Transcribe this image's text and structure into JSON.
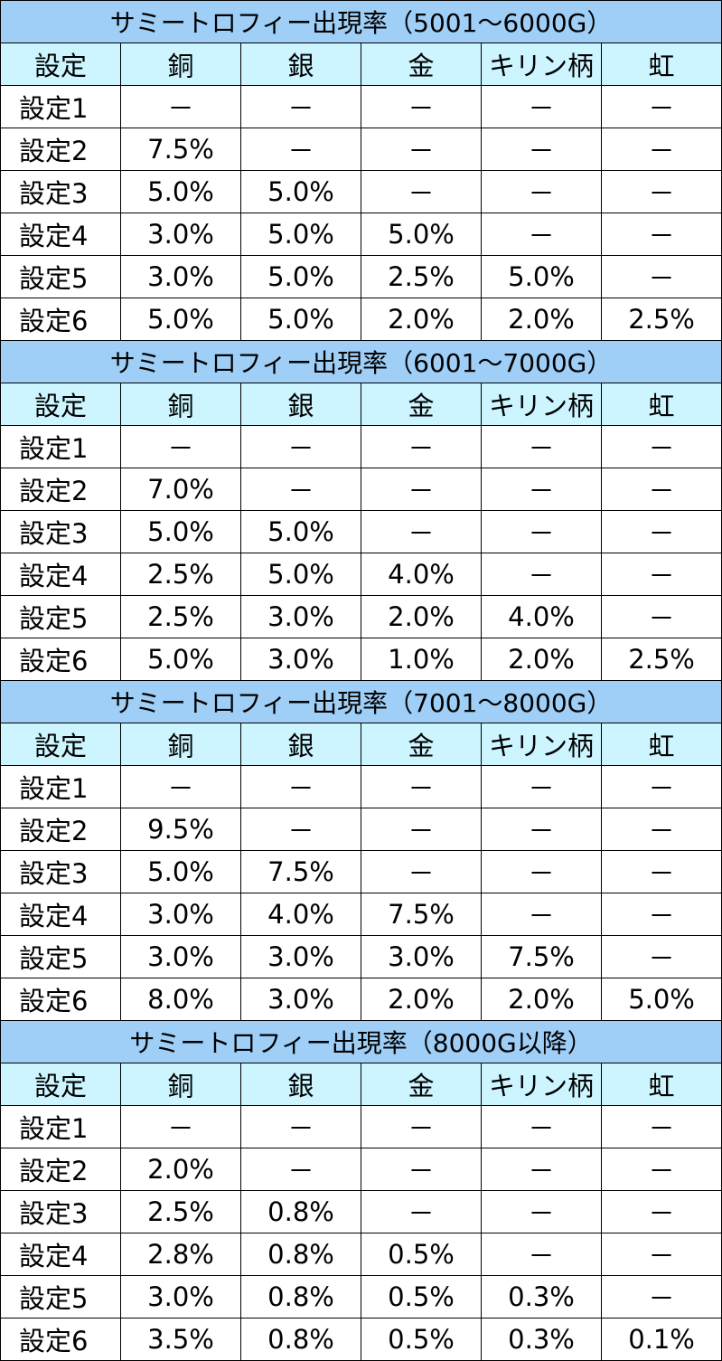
{
  "columns": [
    "設定",
    "銅",
    "銀",
    "金",
    "キリン柄",
    "虹"
  ],
  "sections": [
    {
      "title": "サミートロフィー出現率（5001～6000G）",
      "rows": [
        [
          "設定1",
          "－",
          "－",
          "－",
          "－",
          "－"
        ],
        [
          "設定2",
          "7.5%",
          "－",
          "－",
          "－",
          "－"
        ],
        [
          "設定3",
          "5.0%",
          "5.0%",
          "－",
          "－",
          "－"
        ],
        [
          "設定4",
          "3.0%",
          "5.0%",
          "5.0%",
          "－",
          "－"
        ],
        [
          "設定5",
          "3.0%",
          "5.0%",
          "2.5%",
          "5.0%",
          "－"
        ],
        [
          "設定6",
          "5.0%",
          "5.0%",
          "2.0%",
          "2.0%",
          "2.5%"
        ]
      ]
    },
    {
      "title": "サミートロフィー出現率（6001～7000G）",
      "rows": [
        [
          "設定1",
          "－",
          "－",
          "－",
          "－",
          "－"
        ],
        [
          "設定2",
          "7.0%",
          "－",
          "－",
          "－",
          "－"
        ],
        [
          "設定3",
          "5.0%",
          "5.0%",
          "－",
          "－",
          "－"
        ],
        [
          "設定4",
          "2.5%",
          "5.0%",
          "4.0%",
          "－",
          "－"
        ],
        [
          "設定5",
          "2.5%",
          "3.0%",
          "2.0%",
          "4.0%",
          "－"
        ],
        [
          "設定6",
          "5.0%",
          "3.0%",
          "1.0%",
          "2.0%",
          "2.5%"
        ]
      ]
    },
    {
      "title": "サミートロフィー出現率（7001～8000G）",
      "rows": [
        [
          "設定1",
          "－",
          "－",
          "－",
          "－",
          "－"
        ],
        [
          "設定2",
          "9.5%",
          "－",
          "－",
          "－",
          "－"
        ],
        [
          "設定3",
          "5.0%",
          "7.5%",
          "－",
          "－",
          "－"
        ],
        [
          "設定4",
          "3.0%",
          "4.0%",
          "7.5%",
          "－",
          "－"
        ],
        [
          "設定5",
          "3.0%",
          "3.0%",
          "3.0%",
          "7.5%",
          "－"
        ],
        [
          "設定6",
          "8.0%",
          "3.0%",
          "2.0%",
          "2.0%",
          "5.0%"
        ]
      ]
    },
    {
      "title": "サミートロフィー出現率（8000G以降）",
      "rows": [
        [
          "設定1",
          "－",
          "－",
          "－",
          "－",
          "－"
        ],
        [
          "設定2",
          "2.0%",
          "－",
          "－",
          "－",
          "－"
        ],
        [
          "設定3",
          "2.5%",
          "0.8%",
          "－",
          "－",
          "－"
        ],
        [
          "設定4",
          "2.8%",
          "0.8%",
          "0.5%",
          "－",
          "－"
        ],
        [
          "設定5",
          "3.0%",
          "0.8%",
          "0.5%",
          "0.3%",
          "－"
        ],
        [
          "設定6",
          "3.5%",
          "0.8%",
          "0.5%",
          "0.3%",
          "0.1%"
        ]
      ]
    }
  ],
  "colors": {
    "title_bg": "#9fcff7",
    "header_bg": "#ccf5ff",
    "border": "#000000"
  }
}
